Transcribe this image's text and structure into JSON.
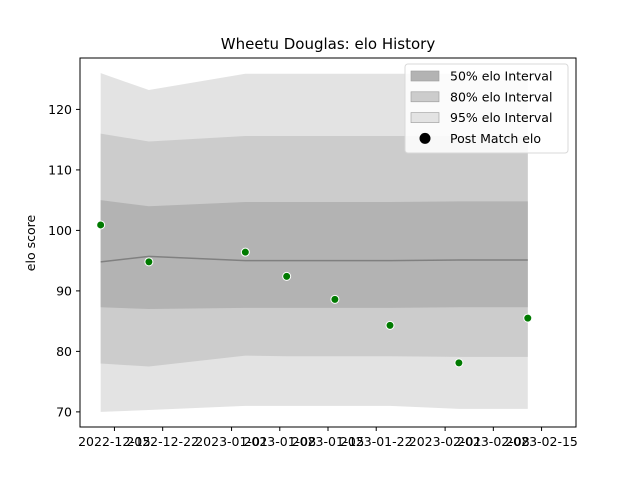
{
  "chart_data": {
    "type": "line",
    "title": "Wheetu Douglas: elo History",
    "xlabel": "",
    "ylabel": "elo score",
    "xlim": [
      "2022-12-10",
      "2023-02-20"
    ],
    "ylim": [
      67.5,
      128.5
    ],
    "x_ticks": [
      "2022-12-15",
      "2022-12-22",
      "2023-01-01",
      "2023-01-08",
      "2023-01-15",
      "2023-01-22",
      "2023-02-01",
      "2023-02-08",
      "2023-02-15"
    ],
    "y_ticks": [
      70,
      80,
      90,
      100,
      110,
      120
    ],
    "grid": false,
    "legend_position": "top-right",
    "x": [
      "2022-12-13",
      "2022-12-20",
      "2023-01-03",
      "2023-01-09",
      "2023-01-16",
      "2023-01-24",
      "2023-02-03",
      "2023-02-13"
    ],
    "bands": [
      {
        "name": "50% elo Interval",
        "color": "#b3b3b3",
        "lower": [
          87.3,
          87.0,
          87.2,
          87.2,
          87.2,
          87.2,
          87.3,
          87.3
        ],
        "upper": [
          105.0,
          104.0,
          104.7,
          104.7,
          104.7,
          104.7,
          104.8,
          104.8
        ]
      },
      {
        "name": "80% elo Interval",
        "color": "#cccccc",
        "lower": [
          78.0,
          77.5,
          79.3,
          79.2,
          79.2,
          79.2,
          79.1,
          79.1
        ],
        "upper": [
          116.0,
          114.7,
          115.6,
          115.6,
          115.6,
          115.6,
          115.6,
          115.6
        ]
      },
      {
        "name": "95% elo Interval",
        "color": "#e3e3e3",
        "lower": [
          70.0,
          70.3,
          71.0,
          71.0,
          71.0,
          71.0,
          70.5,
          70.5
        ],
        "upper": [
          126.0,
          123.2,
          125.9,
          125.9,
          125.9,
          125.9,
          125.9,
          125.9
        ]
      }
    ],
    "series": [
      {
        "type": "line",
        "color": "#808080",
        "values": [
          94.8,
          95.7,
          95.0,
          95.0,
          95.0,
          95.0,
          95.1,
          95.1
        ]
      },
      {
        "name": "Post Match elo",
        "type": "scatter",
        "color": "#007a00",
        "values": [
          100.9,
          94.8,
          96.4,
          92.4,
          88.6,
          84.3,
          78.1,
          85.5
        ]
      }
    ],
    "legend": [
      {
        "label": "50% elo Interval",
        "swatch": "band",
        "color": "#b3b3b3"
      },
      {
        "label": "80% elo Interval",
        "swatch": "band",
        "color": "#cccccc"
      },
      {
        "label": "95% elo Interval",
        "swatch": "band",
        "color": "#e3e3e3"
      },
      {
        "label": "Post Match elo",
        "swatch": "marker",
        "color": "#000000"
      }
    ]
  }
}
